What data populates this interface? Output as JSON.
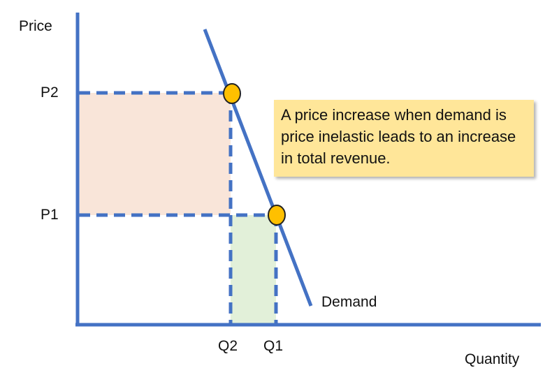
{
  "axes": {
    "y_label": "Price",
    "x_label": "Quantity"
  },
  "price_levels": [
    "P2",
    "P1"
  ],
  "quantity_levels": [
    "Q2",
    "Q1"
  ],
  "curve_label": "Demand",
  "note": "A price increase when demand is price inelastic leads to an increase in total revenue.",
  "colors": {
    "line": "#4472c4",
    "point": "#ffc000",
    "revenue_p2_area": "#f9e5d9",
    "revenue_p1_extra_area": "#e2f0d9",
    "note_fill": "#ffe699"
  }
}
